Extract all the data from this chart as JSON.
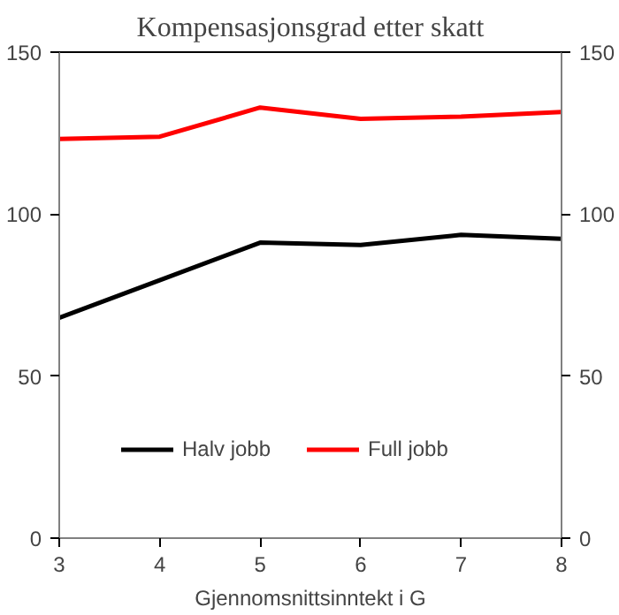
{
  "chart_data": {
    "type": "line",
    "title": "Kompensasjonsgrad etter skatt",
    "xlabel": "Gjennomsnittsinntekt i G",
    "x": [
      3,
      4,
      5,
      6,
      7,
      8
    ],
    "series": [
      {
        "name": "Halv jobb",
        "color": "#000000",
        "values": [
          68,
          79.6,
          91.2,
          90.5,
          93.6,
          92.4
        ]
      },
      {
        "name": "Full jobb",
        "color": "#ff0000",
        "values": [
          123.2,
          123.9,
          132.9,
          129.4,
          130.1,
          131.5
        ]
      }
    ],
    "xlim": [
      3,
      8
    ],
    "xticks": [
      3,
      4,
      5,
      6,
      7,
      8
    ],
    "ylim": [
      0,
      150
    ],
    "yticks": [
      0,
      50,
      100,
      150
    ],
    "y2lim": [
      0,
      150
    ],
    "y2ticks": [
      0,
      50,
      100,
      150
    ],
    "grid": false,
    "legend": "bottom",
    "marker": "none",
    "line_style": "solid"
  }
}
